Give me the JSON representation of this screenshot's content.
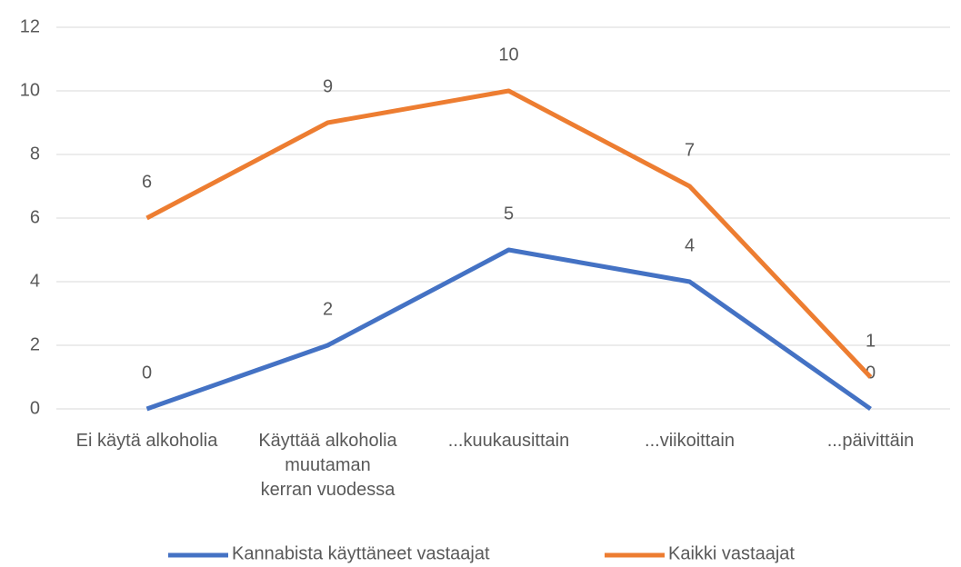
{
  "chart_data": {
    "type": "line",
    "categories": [
      "Ei käytä alkoholia",
      "Käyttää alkoholia\nmuutaman\nkerran vuodessa",
      "...kuukausittain",
      "...viikoittain",
      "...päivittäin"
    ],
    "series": [
      {
        "name": "Kannabista käyttäneet vastaajat",
        "color": "#4472c4",
        "values": [
          0,
          2,
          5,
          4,
          0
        ]
      },
      {
        "name": "Kaikki vastaajat",
        "color": "#ed7d31",
        "values": [
          6,
          9,
          10,
          7,
          1
        ]
      }
    ],
    "ylim": [
      0,
      12
    ],
    "yticks": [
      0,
      2,
      4,
      6,
      8,
      10,
      12
    ],
    "grid": true,
    "legend": "bottom"
  }
}
